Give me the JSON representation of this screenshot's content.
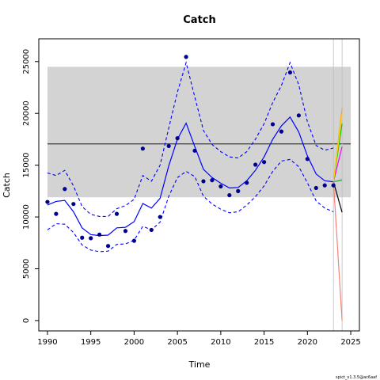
{
  "chart_data": {
    "type": "line",
    "title": "Catch",
    "xlabel": "Time",
    "ylabel": "Catch",
    "footnote": "spict_v1.3.5@ac6aaf",
    "xlim": [
      1989,
      2026
    ],
    "ylim": [
      -1000,
      27200
    ],
    "xticks": [
      1990,
      1995,
      2000,
      2005,
      2010,
      2015,
      2020,
      2025
    ],
    "yticks": [
      0,
      5000,
      10000,
      15000,
      20000,
      25000
    ],
    "grid": false,
    "colors": {
      "band": "#d3d3d3",
      "fit": "#0000ff",
      "points": "#00008b",
      "msy": "#000000",
      "vline": "#bebebe"
    },
    "msy_band": {
      "x": [
        1990,
        2025
      ],
      "lower": 11900,
      "upper": 24500
    },
    "msy_line": 17050,
    "observations": {
      "x": [
        1990,
        1991,
        1992,
        1993,
        1994,
        1995,
        1996,
        1997,
        1998,
        1999,
        2000,
        2001,
        2002,
        2003,
        2004,
        2005,
        2006,
        2007,
        2008,
        2009,
        2010,
        2011,
        2012,
        2013,
        2014,
        2015,
        2016,
        2017,
        2018,
        2019,
        2020,
        2021,
        2022,
        2023
      ],
      "y": [
        11450,
        10300,
        12700,
        11250,
        8000,
        7950,
        8300,
        7200,
        10300,
        8650,
        7700,
        16600,
        8750,
        10000,
        16850,
        17600,
        25450,
        16400,
        13450,
        13550,
        12950,
        12100,
        12500,
        13300,
        15050,
        15300,
        18950,
        18250,
        23950,
        19800,
        15600,
        12800,
        13050,
        13050
      ]
    },
    "fit": {
      "x": [
        1990,
        1991,
        1992,
        1993,
        1994,
        1995,
        1996,
        1997,
        1998,
        1999,
        2000,
        2001,
        2002,
        2003,
        2004,
        2005,
        2006,
        2007,
        2008,
        2009,
        2010,
        2011,
        2012,
        2013,
        2014,
        2015,
        2016,
        2017,
        2018,
        2019,
        2020,
        2021,
        2022,
        2023
      ],
      "estimate": [
        11150,
        11500,
        11600,
        10500,
        8950,
        8300,
        8200,
        8250,
        8950,
        9000,
        9550,
        11300,
        10850,
        11800,
        14950,
        17500,
        19050,
        16800,
        14600,
        13800,
        13250,
        12800,
        12850,
        13500,
        14500,
        15800,
        17500,
        18800,
        19650,
        18200,
        15900,
        14150,
        13500,
        13400
      ],
      "upper": [
        14250,
        14000,
        14500,
        13000,
        11000,
        10250,
        10050,
        10050,
        10800,
        11100,
        11700,
        14000,
        13450,
        15000,
        18600,
        22050,
        24900,
        21600,
        18350,
        17000,
        16300,
        15800,
        15700,
        16300,
        17500,
        19000,
        21050,
        22700,
        24900,
        22750,
        19200,
        16900,
        16450,
        16650
      ],
      "lower": [
        8750,
        9350,
        9300,
        8500,
        7300,
        6800,
        6650,
        6700,
        7350,
        7400,
        7750,
        9100,
        8750,
        9500,
        12000,
        13800,
        14400,
        13900,
        12000,
        11250,
        10750,
        10400,
        10500,
        11150,
        11950,
        13000,
        14400,
        15400,
        15550,
        14850,
        13300,
        11550,
        10850,
        10500
      ]
    },
    "vlines": [
      2023,
      2024
    ],
    "forecasts": [
      {
        "color": "#000000",
        "x": [
          2023,
          2024
        ],
        "y": [
          13400,
          10450
        ]
      },
      {
        "color": "#fa8072",
        "x": [
          2023,
          2024
        ],
        "y": [
          13400,
          0
        ]
      },
      {
        "color": "#ff00ff",
        "x": [
          2023,
          2024
        ],
        "y": [
          13400,
          16800
        ]
      },
      {
        "color": "#ffa500",
        "x": [
          2023,
          2024
        ],
        "y": [
          13400,
          20500
        ]
      },
      {
        "color": "#bebebe",
        "x": [
          2023,
          2024
        ],
        "y": [
          13400,
          19400
        ]
      },
      {
        "color": "#00cd00",
        "x": [
          2023,
          2024
        ],
        "y": [
          13400,
          19000
        ]
      },
      {
        "color": "#00bfff",
        "x": [
          2023,
          2024
        ],
        "y": [
          13400,
          13600
        ]
      },
      {
        "color": "#ffd700",
        "x": [
          2023,
          2024
        ],
        "y": [
          13400,
          19900
        ]
      },
      {
        "color": "#4ab04a",
        "x": [
          2023,
          2024
        ],
        "y": [
          13400,
          13550
        ]
      }
    ]
  }
}
